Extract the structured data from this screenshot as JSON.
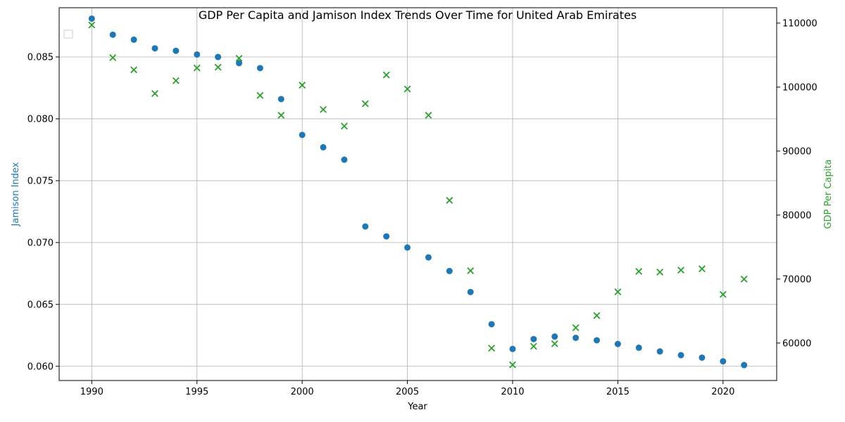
{
  "chart_data": {
    "type": "scatter",
    "title": "GDP Per Capita and Jamison Index Trends Over Time for United Arab Emirates",
    "xlabel": "Year",
    "ylabel_left": "Jamison Index",
    "ylabel_right": "GDP Per Capita",
    "xlim": [
      1988.45,
      2022.55
    ],
    "ylim_left": [
      0.05885,
      0.08898
    ],
    "ylim_right": [
      54150,
      112400
    ],
    "x_ticks": [
      1990,
      1995,
      2000,
      2005,
      2010,
      2015,
      2020
    ],
    "y_left_ticks": [
      0.06,
      0.065,
      0.07,
      0.075,
      0.08,
      0.085
    ],
    "y_left_tick_labels": [
      "0.060",
      "0.065",
      "0.070",
      "0.075",
      "0.080",
      "0.085"
    ],
    "y_right_ticks": [
      60000,
      70000,
      80000,
      90000,
      100000,
      110000
    ],
    "y_right_tick_labels": [
      "60000",
      "70000",
      "80000",
      "90000",
      "100000",
      "110000"
    ],
    "grid": true,
    "legend": {
      "placement": "upper-left",
      "entries": []
    },
    "colors": {
      "left": "#1f77b4",
      "right": "#2ca02c"
    },
    "series": [
      {
        "axis": "left",
        "marker": "circle",
        "x": [
          1990,
          1991,
          1992,
          1993,
          1994,
          1995,
          1996,
          1997,
          1998,
          1999,
          2000,
          2001,
          2002,
          2003,
          2004,
          2005,
          2006,
          2007,
          2008,
          2009,
          2010,
          2011,
          2012,
          2013,
          2014,
          2015,
          2016,
          2017,
          2018,
          2019,
          2020,
          2021
        ],
        "values": [
          0.0881,
          0.0868,
          0.0864,
          0.0857,
          0.0855,
          0.0852,
          0.085,
          0.0845,
          0.0841,
          0.0816,
          0.0787,
          0.0777,
          0.0767,
          0.0713,
          0.0705,
          0.0696,
          0.0688,
          0.0677,
          0.066,
          0.0634,
          0.0614,
          0.0622,
          0.0624,
          0.0623,
          0.0621,
          0.0618,
          0.0615,
          0.0612,
          0.0609,
          0.0607,
          0.0604,
          0.0601
        ]
      },
      {
        "axis": "right",
        "marker": "x",
        "x": [
          1990,
          1991,
          1992,
          1993,
          1994,
          1995,
          1996,
          1997,
          1998,
          1999,
          2000,
          2001,
          2002,
          2003,
          2004,
          2005,
          2006,
          2007,
          2008,
          2009,
          2010,
          2011,
          2012,
          2013,
          2014,
          2015,
          2016,
          2017,
          2018,
          2019,
          2020,
          2021
        ],
        "values": [
          109700,
          104600,
          102700,
          99000,
          101000,
          103000,
          103100,
          104500,
          98700,
          95600,
          100300,
          96500,
          93900,
          97400,
          101900,
          99700,
          95600,
          82300,
          71300,
          59200,
          56600,
          59500,
          59900,
          62400,
          64300,
          68000,
          71200,
          71100,
          71400,
          71600,
          67600,
          70000
        ]
      }
    ]
  }
}
